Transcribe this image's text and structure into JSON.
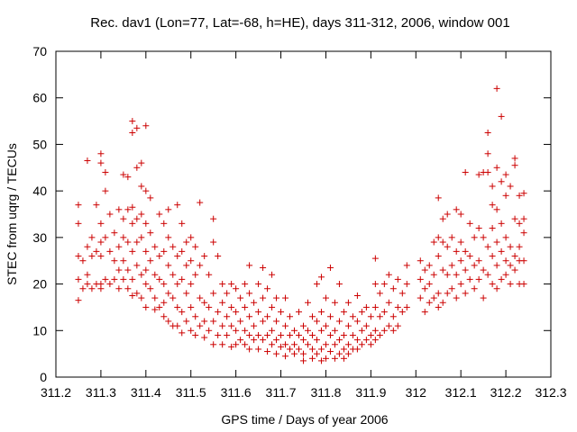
{
  "chart_data": {
    "type": "scatter",
    "title": "Rec. dav1 (Lon=77, Lat=-68, h=HE), days 311-312, 2006, window 001",
    "xlabel": "GPS time / Days of year 2006",
    "ylabel": "STEC from uqrg / TECUs",
    "xlim": [
      311.2,
      312.3
    ],
    "ylim": [
      0,
      70
    ],
    "xticks": [
      "311.2",
      "311.3",
      "311.4",
      "311.5",
      "311.6",
      "311.7",
      "311.8",
      "311.9",
      "312",
      "312.1",
      "312.2",
      "312.3"
    ],
    "xtick_values": [
      311.2,
      311.3,
      311.4,
      311.5,
      311.6,
      311.7,
      311.8,
      311.9,
      312.0,
      312.1,
      312.2,
      312.3
    ],
    "yticks": [
      "0",
      "10",
      "20",
      "30",
      "40",
      "50",
      "60",
      "70"
    ],
    "ytick_values": [
      0,
      10,
      20,
      30,
      40,
      50,
      60,
      70
    ],
    "grid": false,
    "marker": "+",
    "color": "#cc0000",
    "points": [
      [
        311.25,
        37
      ],
      [
        311.25,
        33
      ],
      [
        311.25,
        26
      ],
      [
        311.25,
        21
      ],
      [
        311.25,
        16.5
      ],
      [
        311.26,
        25
      ],
      [
        311.26,
        19
      ],
      [
        311.27,
        46.5
      ],
      [
        311.27,
        28
      ],
      [
        311.27,
        22
      ],
      [
        311.27,
        20
      ],
      [
        311.28,
        30
      ],
      [
        311.28,
        26
      ],
      [
        311.28,
        19
      ],
      [
        311.29,
        37
      ],
      [
        311.29,
        27
      ],
      [
        311.29,
        20
      ],
      [
        311.3,
        48
      ],
      [
        311.3,
        46
      ],
      [
        311.3,
        33
      ],
      [
        311.3,
        29
      ],
      [
        311.3,
        26
      ],
      [
        311.3,
        20
      ],
      [
        311.3,
        19
      ],
      [
        311.31,
        44
      ],
      [
        311.31,
        40
      ],
      [
        311.31,
        30
      ],
      [
        311.31,
        21
      ],
      [
        311.32,
        35
      ],
      [
        311.32,
        27
      ],
      [
        311.32,
        20
      ],
      [
        311.33,
        31
      ],
      [
        311.33,
        25
      ],
      [
        311.33,
        21
      ],
      [
        311.34,
        36
      ],
      [
        311.34,
        28
      ],
      [
        311.34,
        23
      ],
      [
        311.34,
        19
      ],
      [
        311.35,
        43.5
      ],
      [
        311.35,
        34
      ],
      [
        311.35,
        30
      ],
      [
        311.35,
        25
      ],
      [
        311.35,
        21
      ],
      [
        311.36,
        43
      ],
      [
        311.36,
        36
      ],
      [
        311.36,
        29
      ],
      [
        311.36,
        23
      ],
      [
        311.36,
        19
      ],
      [
        311.37,
        55
      ],
      [
        311.37,
        52.5
      ],
      [
        311.37,
        36.5
      ],
      [
        311.37,
        33
      ],
      [
        311.37,
        27
      ],
      [
        311.37,
        21
      ],
      [
        311.37,
        17.5
      ],
      [
        311.38,
        53.5
      ],
      [
        311.38,
        45
      ],
      [
        311.38,
        34
      ],
      [
        311.38,
        29
      ],
      [
        311.38,
        24
      ],
      [
        311.38,
        18
      ],
      [
        311.39,
        46
      ],
      [
        311.39,
        41
      ],
      [
        311.39,
        35
      ],
      [
        311.39,
        30
      ],
      [
        311.39,
        22
      ],
      [
        311.39,
        17
      ],
      [
        311.4,
        54
      ],
      [
        311.4,
        40
      ],
      [
        311.4,
        33
      ],
      [
        311.4,
        27
      ],
      [
        311.4,
        23
      ],
      [
        311.4,
        20
      ],
      [
        311.4,
        15
      ],
      [
        311.41,
        38.5
      ],
      [
        311.41,
        31
      ],
      [
        311.41,
        25
      ],
      [
        311.41,
        19
      ],
      [
        311.42,
        28
      ],
      [
        311.42,
        22
      ],
      [
        311.42,
        17
      ],
      [
        311.42,
        14.5
      ],
      [
        311.43,
        35
      ],
      [
        311.43,
        26
      ],
      [
        311.43,
        21
      ],
      [
        311.43,
        15
      ],
      [
        311.44,
        33
      ],
      [
        311.44,
        27
      ],
      [
        311.44,
        20
      ],
      [
        311.44,
        16
      ],
      [
        311.44,
        13
      ],
      [
        311.45,
        36
      ],
      [
        311.45,
        30
      ],
      [
        311.45,
        24
      ],
      [
        311.45,
        18
      ],
      [
        311.45,
        12
      ],
      [
        311.46,
        28
      ],
      [
        311.46,
        22
      ],
      [
        311.46,
        17
      ],
      [
        311.46,
        11
      ],
      [
        311.47,
        37
      ],
      [
        311.47,
        26
      ],
      [
        311.47,
        20
      ],
      [
        311.47,
        15
      ],
      [
        311.47,
        11
      ],
      [
        311.48,
        33
      ],
      [
        311.48,
        27
      ],
      [
        311.48,
        21
      ],
      [
        311.48,
        14
      ],
      [
        311.48,
        9.5
      ],
      [
        311.49,
        29
      ],
      [
        311.49,
        24
      ],
      [
        311.49,
        18
      ],
      [
        311.49,
        12
      ],
      [
        311.5,
        30
      ],
      [
        311.5,
        25
      ],
      [
        311.5,
        20
      ],
      [
        311.5,
        15
      ],
      [
        311.5,
        10
      ],
      [
        311.51,
        28
      ],
      [
        311.51,
        22
      ],
      [
        311.51,
        13
      ],
      [
        311.51,
        9
      ],
      [
        311.52,
        37.5
      ],
      [
        311.52,
        24
      ],
      [
        311.52,
        17
      ],
      [
        311.52,
        11
      ],
      [
        311.53,
        26
      ],
      [
        311.53,
        16
      ],
      [
        311.53,
        12
      ],
      [
        311.53,
        8.5
      ],
      [
        311.54,
        22
      ],
      [
        311.54,
        15
      ],
      [
        311.54,
        10
      ],
      [
        311.55,
        34
      ],
      [
        311.55,
        29
      ],
      [
        311.55,
        18
      ],
      [
        311.55,
        12
      ],
      [
        311.55,
        7
      ],
      [
        311.56,
        26
      ],
      [
        311.56,
        14
      ],
      [
        311.56,
        9
      ],
      [
        311.57,
        20
      ],
      [
        311.57,
        16
      ],
      [
        311.57,
        11
      ],
      [
        311.57,
        7
      ],
      [
        311.58,
        18
      ],
      [
        311.58,
        13
      ],
      [
        311.58,
        9
      ],
      [
        311.59,
        20
      ],
      [
        311.59,
        15
      ],
      [
        311.59,
        11
      ],
      [
        311.59,
        6.5
      ],
      [
        311.6,
        19
      ],
      [
        311.6,
        14
      ],
      [
        311.6,
        10
      ],
      [
        311.6,
        7
      ],
      [
        311.61,
        17
      ],
      [
        311.61,
        12
      ],
      [
        311.61,
        8
      ],
      [
        311.62,
        20
      ],
      [
        311.62,
        15
      ],
      [
        311.62,
        10
      ],
      [
        311.62,
        7
      ],
      [
        311.63,
        24
      ],
      [
        311.63,
        18
      ],
      [
        311.63,
        13
      ],
      [
        311.63,
        9
      ],
      [
        311.63,
        6
      ],
      [
        311.64,
        16
      ],
      [
        311.64,
        11
      ],
      [
        311.64,
        8
      ],
      [
        311.65,
        20
      ],
      [
        311.65,
        14
      ],
      [
        311.65,
        9
      ],
      [
        311.65,
        6
      ],
      [
        311.66,
        23.5
      ],
      [
        311.66,
        17
      ],
      [
        311.66,
        12
      ],
      [
        311.66,
        8
      ],
      [
        311.67,
        19
      ],
      [
        311.67,
        13
      ],
      [
        311.67,
        9
      ],
      [
        311.67,
        5.5
      ],
      [
        311.68,
        22
      ],
      [
        311.68,
        15
      ],
      [
        311.68,
        10
      ],
      [
        311.68,
        7
      ],
      [
        311.69,
        17
      ],
      [
        311.69,
        12
      ],
      [
        311.69,
        8
      ],
      [
        311.69,
        5
      ],
      [
        311.7,
        14
      ],
      [
        311.7,
        9
      ],
      [
        311.7,
        6.5
      ],
      [
        311.71,
        17
      ],
      [
        311.71,
        11
      ],
      [
        311.71,
        7
      ],
      [
        311.71,
        4.5
      ],
      [
        311.72,
        13
      ],
      [
        311.72,
        9
      ],
      [
        311.72,
        6
      ],
      [
        311.73,
        10
      ],
      [
        311.73,
        7
      ],
      [
        311.73,
        5
      ],
      [
        311.74,
        14
      ],
      [
        311.74,
        9
      ],
      [
        311.74,
        6
      ],
      [
        311.75,
        11
      ],
      [
        311.75,
        8
      ],
      [
        311.75,
        5
      ],
      [
        311.75,
        3.5
      ],
      [
        311.76,
        16
      ],
      [
        311.76,
        10
      ],
      [
        311.76,
        7
      ],
      [
        311.77,
        13
      ],
      [
        311.77,
        9
      ],
      [
        311.77,
        6
      ],
      [
        311.77,
        4
      ],
      [
        311.78,
        20
      ],
      [
        311.78,
        12
      ],
      [
        311.78,
        8
      ],
      [
        311.78,
        5
      ],
      [
        311.79,
        21.5
      ],
      [
        311.79,
        14
      ],
      [
        311.79,
        10
      ],
      [
        311.79,
        6
      ],
      [
        311.79,
        3.5
      ],
      [
        311.8,
        17
      ],
      [
        311.8,
        11
      ],
      [
        311.8,
        7
      ],
      [
        311.8,
        4
      ],
      [
        311.81,
        23.5
      ],
      [
        311.81,
        13
      ],
      [
        311.81,
        9
      ],
      [
        311.81,
        5.5
      ],
      [
        311.82,
        16
      ],
      [
        311.82,
        10
      ],
      [
        311.82,
        7
      ],
      [
        311.82,
        4
      ],
      [
        311.83,
        20
      ],
      [
        311.83,
        12
      ],
      [
        311.83,
        8
      ],
      [
        311.83,
        5
      ],
      [
        311.84,
        14
      ],
      [
        311.84,
        9
      ],
      [
        311.84,
        6
      ],
      [
        311.84,
        4
      ],
      [
        311.85,
        16
      ],
      [
        311.85,
        11
      ],
      [
        311.85,
        7
      ],
      [
        311.85,
        5
      ],
      [
        311.86,
        13
      ],
      [
        311.86,
        9
      ],
      [
        311.86,
        6
      ],
      [
        311.87,
        17.5
      ],
      [
        311.87,
        12
      ],
      [
        311.87,
        8
      ],
      [
        311.87,
        6
      ],
      [
        311.88,
        14
      ],
      [
        311.88,
        10
      ],
      [
        311.88,
        7
      ],
      [
        311.89,
        15
      ],
      [
        311.89,
        11
      ],
      [
        311.89,
        8
      ],
      [
        311.9,
        13
      ],
      [
        311.9,
        9
      ],
      [
        311.9,
        7
      ],
      [
        311.91,
        25.5
      ],
      [
        311.91,
        20
      ],
      [
        311.91,
        15
      ],
      [
        311.91,
        10
      ],
      [
        311.91,
        8
      ],
      [
        311.92,
        18
      ],
      [
        311.92,
        13
      ],
      [
        311.92,
        9
      ],
      [
        311.93,
        20
      ],
      [
        311.93,
        14
      ],
      [
        311.93,
        10
      ],
      [
        311.94,
        22
      ],
      [
        311.94,
        16
      ],
      [
        311.94,
        11
      ],
      [
        311.95,
        19
      ],
      [
        311.95,
        13
      ],
      [
        311.95,
        10
      ],
      [
        311.96,
        21
      ],
      [
        311.96,
        15
      ],
      [
        311.96,
        11
      ],
      [
        311.97,
        18
      ],
      [
        311.97,
        14
      ],
      [
        311.98,
        24
      ],
      [
        311.98,
        20
      ],
      [
        311.98,
        15
      ],
      [
        312.01,
        25
      ],
      [
        312.01,
        21
      ],
      [
        312.01,
        17
      ],
      [
        312.02,
        23
      ],
      [
        312.02,
        19
      ],
      [
        312.02,
        14
      ],
      [
        312.03,
        24
      ],
      [
        312.03,
        20
      ],
      [
        312.03,
        16
      ],
      [
        312.04,
        29
      ],
      [
        312.04,
        22
      ],
      [
        312.04,
        17
      ],
      [
        312.05,
        38.5
      ],
      [
        312.05,
        30
      ],
      [
        312.05,
        26
      ],
      [
        312.05,
        18
      ],
      [
        312.05,
        15
      ],
      [
        312.06,
        34
      ],
      [
        312.06,
        29
      ],
      [
        312.06,
        23
      ],
      [
        312.06,
        16
      ],
      [
        312.07,
        35
      ],
      [
        312.07,
        28
      ],
      [
        312.07,
        22
      ],
      [
        312.07,
        18
      ],
      [
        312.08,
        30
      ],
      [
        312.08,
        24
      ],
      [
        312.08,
        19
      ],
      [
        312.09,
        36
      ],
      [
        312.09,
        27
      ],
      [
        312.09,
        22
      ],
      [
        312.09,
        17
      ],
      [
        312.1,
        35
      ],
      [
        312.1,
        29
      ],
      [
        312.1,
        25
      ],
      [
        312.1,
        20
      ],
      [
        312.11,
        44
      ],
      [
        312.11,
        27
      ],
      [
        312.11,
        23
      ],
      [
        312.11,
        18
      ],
      [
        312.12,
        33
      ],
      [
        312.12,
        26
      ],
      [
        312.12,
        21
      ],
      [
        312.13,
        30
      ],
      [
        312.13,
        24
      ],
      [
        312.13,
        19
      ],
      [
        312.14,
        43.5
      ],
      [
        312.14,
        32
      ],
      [
        312.14,
        25
      ],
      [
        312.14,
        21
      ],
      [
        312.15,
        44
      ],
      [
        312.15,
        30
      ],
      [
        312.15,
        23
      ],
      [
        312.15,
        17
      ],
      [
        312.16,
        52.5
      ],
      [
        312.16,
        48
      ],
      [
        312.16,
        44
      ],
      [
        312.16,
        28
      ],
      [
        312.16,
        22
      ],
      [
        312.17,
        41
      ],
      [
        312.17,
        37
      ],
      [
        312.17,
        32
      ],
      [
        312.17,
        26
      ],
      [
        312.17,
        20
      ],
      [
        312.18,
        62
      ],
      [
        312.18,
        45
      ],
      [
        312.18,
        36
      ],
      [
        312.18,
        29
      ],
      [
        312.18,
        24
      ],
      [
        312.18,
        19
      ],
      [
        312.19,
        56
      ],
      [
        312.19,
        42
      ],
      [
        312.19,
        33
      ],
      [
        312.19,
        27
      ],
      [
        312.19,
        21
      ],
      [
        312.2,
        43.5
      ],
      [
        312.2,
        39
      ],
      [
        312.2,
        30
      ],
      [
        312.2,
        25
      ],
      [
        312.2,
        22
      ],
      [
        312.21,
        41
      ],
      [
        312.21,
        28
      ],
      [
        312.21,
        24
      ],
      [
        312.21,
        20
      ],
      [
        312.22,
        47
      ],
      [
        312.22,
        45.5
      ],
      [
        312.22,
        34
      ],
      [
        312.22,
        26
      ],
      [
        312.22,
        23
      ],
      [
        312.23,
        39
      ],
      [
        312.23,
        33
      ],
      [
        312.23,
        28
      ],
      [
        312.23,
        25
      ],
      [
        312.23,
        20
      ],
      [
        312.24,
        39.5
      ],
      [
        312.24,
        34
      ],
      [
        312.24,
        31
      ],
      [
        312.24,
        25
      ],
      [
        312.24,
        20
      ]
    ]
  }
}
